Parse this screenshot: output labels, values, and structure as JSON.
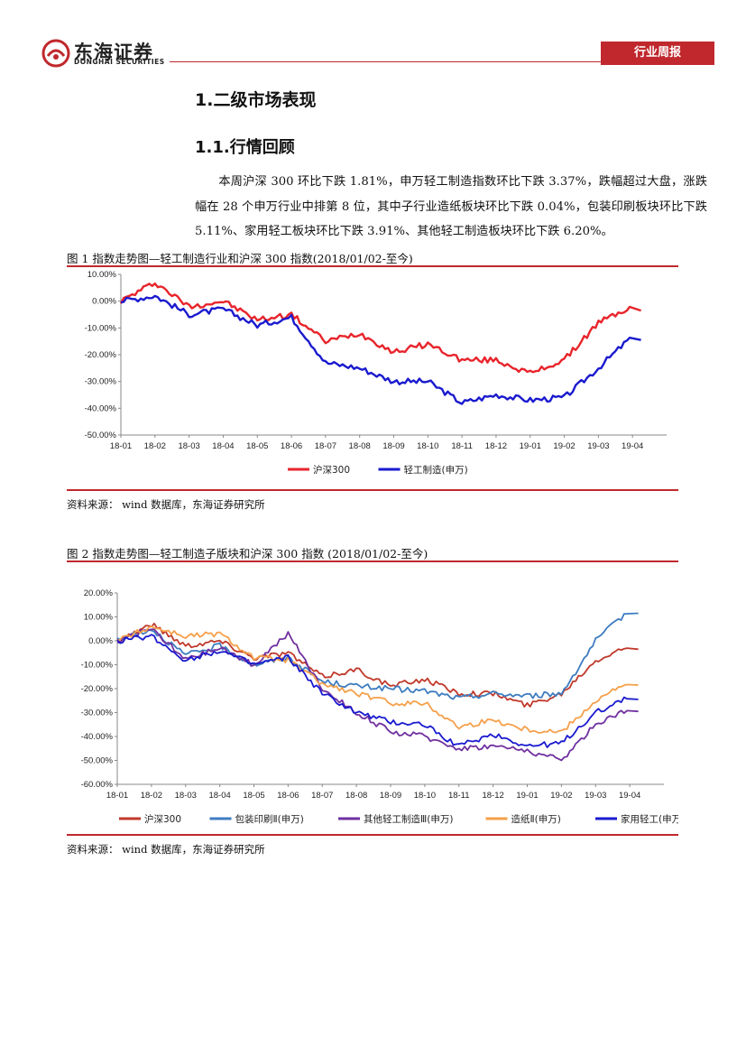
{
  "header": {
    "company_cn": "东海证券",
    "company_en": "DONGHAI SECURITIES",
    "report_type": "行业周报",
    "brand_color": "#c0282d"
  },
  "section": {
    "heading": "1.二级市场表现",
    "subheading": "1.1.行情回顾"
  },
  "paragraph": "本周沪深 300 环比下跌 1.81%，申万轻工制造指数环比下跌 3.37%，跌幅超过大盘，涨跌幅在 28 个申万行业中排第 8 位，其中子行业造纸板块环比下跌 0.04%，包装印刷板块环比下跌 5.11%、家用轻工板块环比下跌 3.91%、其他轻工制造板块环比下跌 6.20%。",
  "figures": [
    {
      "caption": "图 1   指数走势图—轻工制造行业和沪深 300 指数(2018/01/02-至今)",
      "source": "资料来源：   wind 数据库，东海证券研究所"
    },
    {
      "caption": "图 2   指数走势图—轻工制造子版块和沪深 300 指数 (2018/01/02-至今)",
      "source": "资料来源：   wind 数据库，东海证券研究所"
    }
  ],
  "chart_data": [
    {
      "type": "line",
      "title": "",
      "x": [
        "18-01",
        "18-02",
        "18-03",
        "18-04",
        "18-05",
        "18-06",
        "18-07",
        "18-08",
        "18-09",
        "18-10",
        "18-11",
        "18-12",
        "19-01",
        "19-02",
        "19-03",
        "19-04"
      ],
      "x_end": "19-04-end",
      "ylim": [
        -50,
        10
      ],
      "yticks": [
        "10.00%",
        "0.00%",
        "-10.00%",
        "-20.00%",
        "-30.00%",
        "-40.00%",
        "-50.00%"
      ],
      "ytick_values": [
        10,
        0,
        -10,
        -20,
        -30,
        -40,
        -50
      ],
      "unit": "%",
      "legend_position": "bottom",
      "series": [
        {
          "name": "沪深300",
          "color": "#e8242b",
          "values": [
            0,
            7,
            -2,
            0,
            -7,
            -5,
            -15,
            -12,
            -19,
            -16,
            -22,
            -22,
            -27,
            -22,
            -8,
            -2
          ]
        },
        {
          "name": "轻工制造(申万)",
          "color": "#1a1acf",
          "values": [
            0,
            2,
            -5,
            -3,
            -9,
            -6,
            -23,
            -25,
            -30,
            -30,
            -38,
            -35,
            -37,
            -36,
            -25,
            -13
          ]
        }
      ]
    },
    {
      "type": "line",
      "title": "",
      "x": [
        "18-01",
        "18-02",
        "18-03",
        "18-04",
        "18-05",
        "18-06",
        "18-07",
        "18-08",
        "18-09",
        "18-10",
        "18-11",
        "18-12",
        "19-01",
        "19-02",
        "19-03",
        "19-04"
      ],
      "x_end": "19-04-end",
      "ylim": [
        -60,
        20
      ],
      "yticks": [
        "20.00%",
        "10.00%",
        "0.00%",
        "-10.00%",
        "-20.00%",
        "-30.00%",
        "-40.00%",
        "-50.00%",
        "-60.00%"
      ],
      "ytick_values": [
        20,
        10,
        0,
        -10,
        -20,
        -30,
        -40,
        -50,
        -60
      ],
      "unit": "%",
      "legend_position": "bottom",
      "series": [
        {
          "name": "沪深300",
          "color": "#c0392b",
          "values": [
            0,
            7,
            -2,
            0,
            -7,
            -5,
            -15,
            -12,
            -19,
            -16,
            -22,
            -22,
            -27,
            -22,
            -8,
            -2
          ]
        },
        {
          "name": "包装印刷Ⅱ(申万)",
          "color": "#3e7cc0",
          "values": [
            0,
            5,
            -6,
            -2,
            -10,
            -7,
            -17,
            -19,
            -20,
            -21,
            -24,
            -22,
            -23,
            -22,
            0,
            13
          ]
        },
        {
          "name": "其他轻工制造Ⅲ(申万)",
          "color": "#7030a0",
          "values": [
            0,
            5,
            -8,
            -3,
            -10,
            3,
            -20,
            -30,
            -38,
            -40,
            -45,
            -44,
            -46,
            -50,
            -35,
            -28
          ]
        },
        {
          "name": "造纸Ⅱ(申万)",
          "color": "#f5a04a",
          "values": [
            0,
            6,
            2,
            3,
            -7,
            -8,
            -18,
            -22,
            -26,
            -26,
            -36,
            -33,
            -37,
            -38,
            -25,
            -17
          ]
        },
        {
          "name": "家用轻工(申万)",
          "color": "#1a1acf",
          "values": [
            0,
            2,
            -8,
            -4,
            -10,
            -7,
            -22,
            -30,
            -34,
            -35,
            -44,
            -39,
            -44,
            -43,
            -30,
            -23
          ]
        }
      ]
    }
  ]
}
